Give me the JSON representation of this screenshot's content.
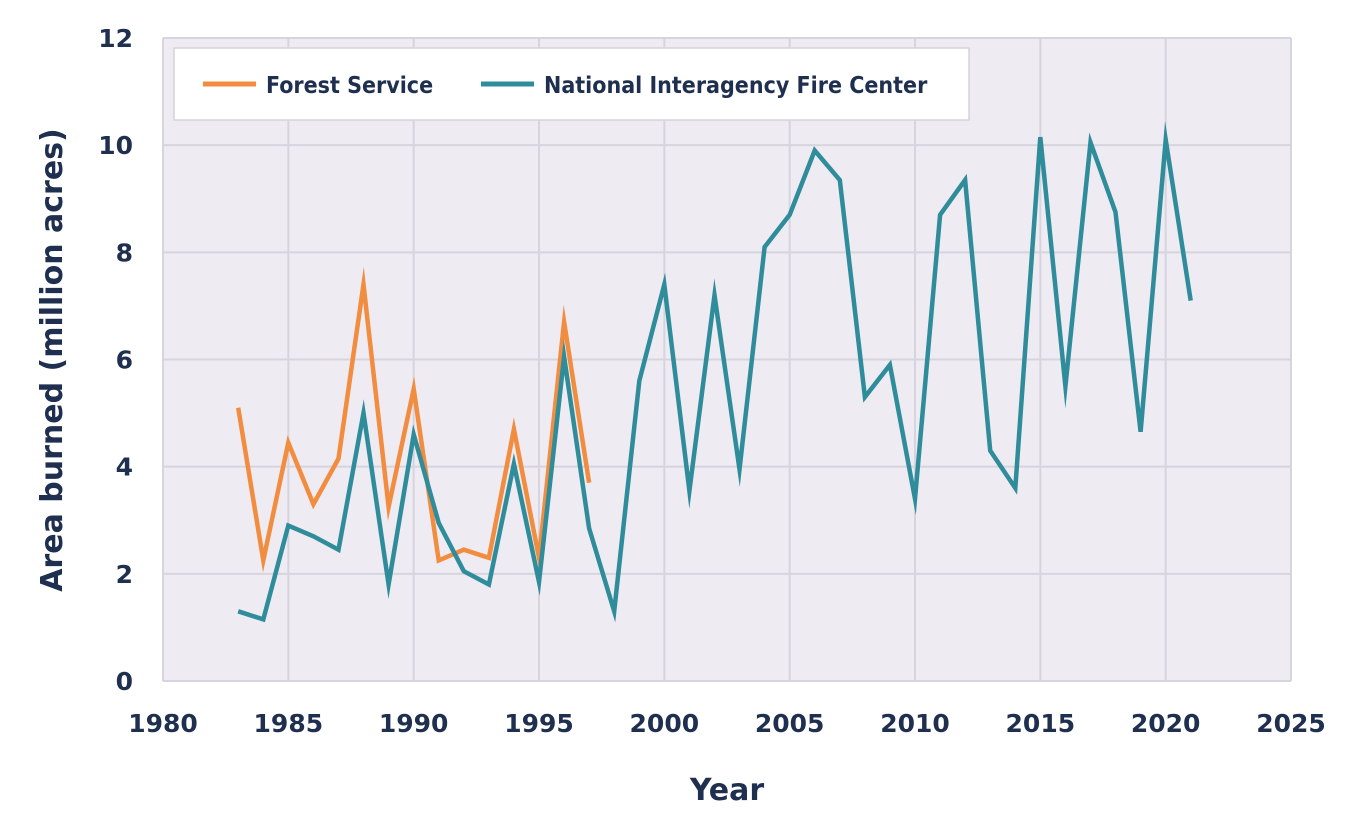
{
  "chart_data": {
    "type": "line",
    "title": "",
    "xlabel": "Year",
    "ylabel": "Area burned (million acres)",
    "xlim": [
      1980,
      2025
    ],
    "ylim": [
      0,
      12
    ],
    "xticks": [
      1980,
      1985,
      1990,
      1995,
      2000,
      2005,
      2010,
      2015,
      2020,
      2025
    ],
    "yticks": [
      0,
      2,
      4,
      6,
      8,
      10,
      12
    ],
    "grid": true,
    "legend_position": "top-left",
    "background_color": "#eeebf3",
    "series": [
      {
        "name": "Forest Service",
        "color": "#f28c3f",
        "x": [
          1983,
          1984,
          1985,
          1986,
          1987,
          1988,
          1989,
          1990,
          1991,
          1992,
          1993,
          1994,
          1995,
          1996,
          1997
        ],
        "values": [
          5.1,
          2.25,
          4.45,
          3.3,
          4.15,
          7.4,
          3.25,
          5.45,
          2.25,
          2.45,
          2.3,
          4.7,
          2.3,
          6.7,
          3.7
        ]
      },
      {
        "name": "National Interagency Fire Center",
        "color": "#2f8c9a",
        "x": [
          1983,
          1984,
          1985,
          1986,
          1987,
          1988,
          1989,
          1990,
          1991,
          1992,
          1993,
          1994,
          1995,
          1996,
          1997,
          1998,
          1999,
          2000,
          2001,
          2002,
          2003,
          2004,
          2005,
          2006,
          2007,
          2008,
          2009,
          2010,
          2011,
          2012,
          2013,
          2014,
          2015,
          2016,
          2017,
          2018,
          2019,
          2020,
          2021
        ],
        "values": [
          1.3,
          1.15,
          2.9,
          2.7,
          2.45,
          5.0,
          1.8,
          4.6,
          2.95,
          2.05,
          1.8,
          4.05,
          1.85,
          6.05,
          2.85,
          1.3,
          5.6,
          7.4,
          3.55,
          7.2,
          3.95,
          8.1,
          8.7,
          9.9,
          9.35,
          5.3,
          5.9,
          3.4,
          8.7,
          9.35,
          4.3,
          3.6,
          10.15,
          5.5,
          10.05,
          8.75,
          4.65,
          10.1,
          7.1
        ]
      }
    ]
  }
}
